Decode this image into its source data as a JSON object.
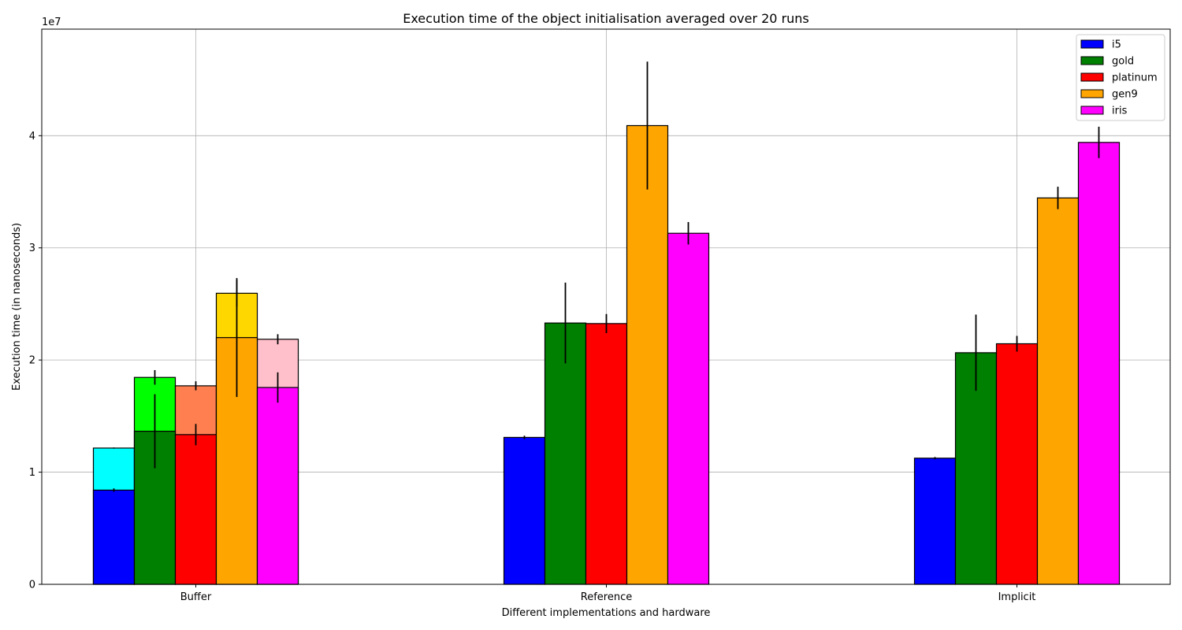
{
  "chart_data": {
    "type": "bar",
    "title": "Execution time of the object initialisation averaged over 20 runs",
    "xlabel": "Different implementations and hardware",
    "ylabel": "Execution time (in nanoseconds)",
    "y_multiplier_label": "1e7",
    "ylim": [
      0,
      49500000
    ],
    "yticks": [
      0,
      10000000,
      20000000,
      30000000,
      40000000
    ],
    "ytick_labels": [
      "0",
      "1",
      "2",
      "3",
      "4"
    ],
    "categories": [
      "Buffer",
      "Reference",
      "Implicit"
    ],
    "grid": true,
    "legend_position": "upper-right",
    "series": [
      {
        "name": "i5",
        "color": "#0000ff",
        "values": [
          8400000,
          13100000,
          11250000
        ],
        "errors": [
          150000,
          150000,
          100000
        ],
        "overlay_values": [
          12150000,
          null,
          null
        ],
        "overlay_errors": [
          50000,
          null,
          null
        ],
        "overlay_color": "#00ffff"
      },
      {
        "name": "gold",
        "color": "#008000",
        "values": [
          13650000,
          23300000,
          20650000
        ],
        "errors": [
          3300000,
          3600000,
          3400000
        ],
        "overlay_values": [
          18450000,
          null,
          null
        ],
        "overlay_errors": [
          650000,
          null,
          null
        ],
        "overlay_color": "#00ff00"
      },
      {
        "name": "platinum",
        "color": "#ff0000",
        "values": [
          13350000,
          23250000,
          21450000
        ],
        "errors": [
          950000,
          850000,
          700000
        ],
        "overlay_values": [
          17700000,
          null,
          null
        ],
        "overlay_errors": [
          400000,
          null,
          null
        ],
        "overlay_color": "#ff7f50"
      },
      {
        "name": "gen9",
        "color": "#ffa500",
        "values": [
          22000000,
          40900000,
          34450000
        ],
        "errors": [
          5300000,
          5700000,
          1000000
        ],
        "overlay_values": [
          25950000,
          null,
          null
        ],
        "overlay_errors": [
          1200000,
          null,
          null
        ],
        "overlay_color": "#ffd700"
      },
      {
        "name": "iris",
        "color": "#ff00ff",
        "values": [
          17550000,
          31300000,
          39400000
        ],
        "errors": [
          1350000,
          1000000,
          1400000
        ],
        "overlay_values": [
          21850000,
          null,
          null
        ],
        "overlay_errors": [
          450000,
          null,
          null
        ],
        "overlay_color": "#ffc0cb"
      }
    ]
  }
}
